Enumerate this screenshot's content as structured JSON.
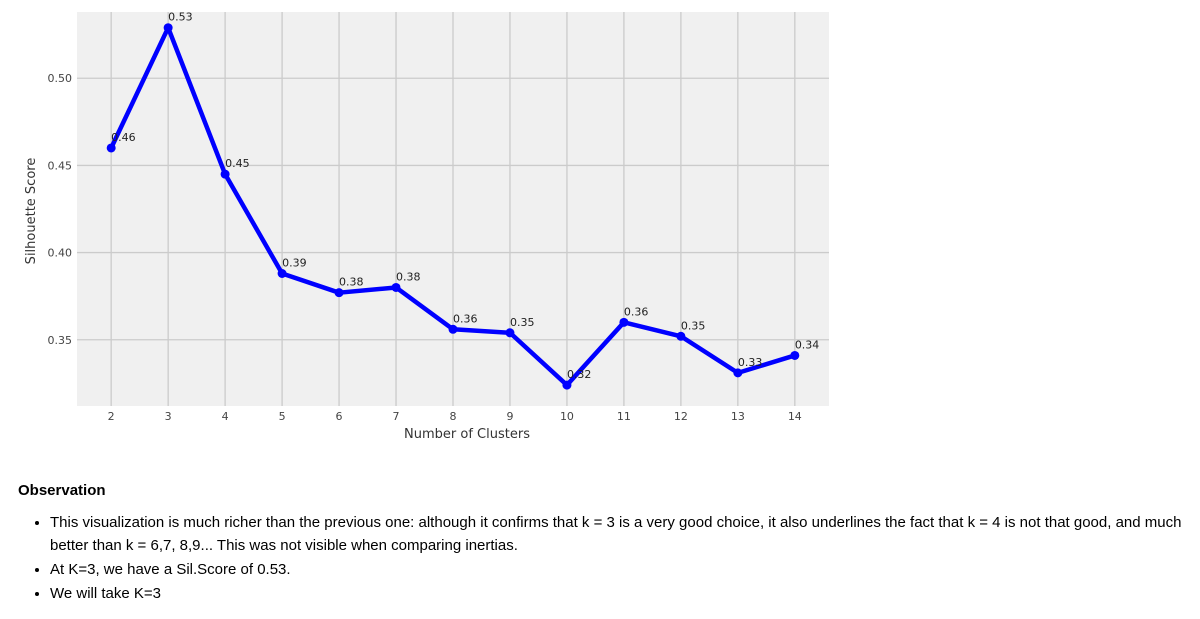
{
  "chart_data": {
    "type": "line",
    "x": [
      2,
      3,
      4,
      5,
      6,
      7,
      8,
      9,
      10,
      11,
      12,
      13,
      14
    ],
    "series": [
      {
        "values": [
          0.46,
          0.529,
          0.445,
          0.388,
          0.377,
          0.38,
          0.356,
          0.354,
          0.324,
          0.36,
          0.352,
          0.331,
          0.341
        ],
        "labels": [
          "0.46",
          "0.53",
          "0.45",
          "0.39",
          "0.38",
          "0.38",
          "0.36",
          "0.35",
          "0.32",
          "0.36",
          "0.35",
          "0.33",
          "0.34"
        ],
        "color": "#0000ff"
      }
    ],
    "xlabel": "Number of Clusters",
    "ylabel": "Silhouette Score",
    "y_ticks": [
      0.35,
      0.4,
      0.45,
      0.5
    ],
    "y_tick_labels": [
      "0.35",
      "0.40",
      "0.45",
      "0.50"
    ],
    "x_tick_labels": [
      "2",
      "3",
      "4",
      "5",
      "6",
      "7",
      "8",
      "9",
      "10",
      "11",
      "12",
      "13",
      "14"
    ],
    "xlim": [
      1.4,
      14.6
    ],
    "ylim": [
      0.312,
      0.538
    ],
    "grid": true,
    "background": "#f0f0f0",
    "gridColor": "#cbcbcb"
  },
  "observation": {
    "heading": "Observation",
    "bullets": [
      "This visualization is much richer than the previous one: although it confirms that k = 3 is a very good choice, it also underlines the fact that k = 4 is not that good, and much better than k = 6,7, 8,9... This was not visible when comparing inertias.",
      "At K=3, we have a Sil.Score of 0.53.",
      "We will take K=3"
    ]
  }
}
